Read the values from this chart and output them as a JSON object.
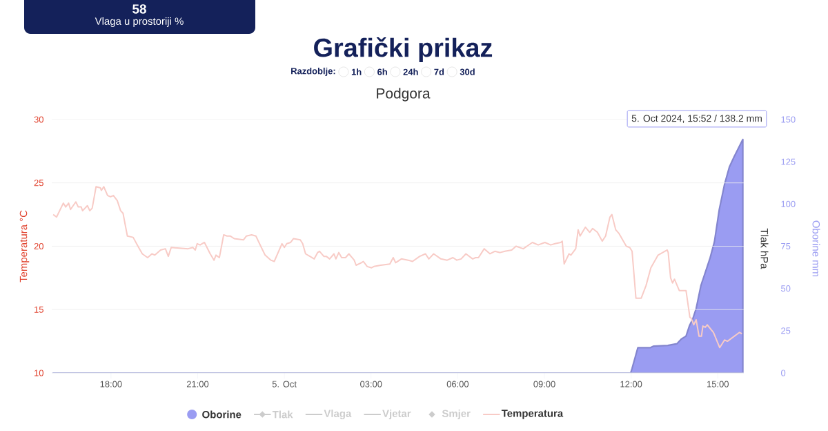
{
  "chart_data": {
    "type": "line",
    "title": "Grafički prikaz",
    "subtitle": "Podgora",
    "ylabel": "Temperatura °C",
    "y2label": "Oborine mm",
    "y3label": "Tlak hPa",
    "xlim": [
      "2024-10-04T15:57",
      "2024-10-05T15:54"
    ],
    "xticks": [
      {
        "value": "2024-10-04T18:00",
        "label": "18:00"
      },
      {
        "value": "2024-10-04T21:00",
        "label": "21:00"
      },
      {
        "value": "2024-10-05T00:00",
        "label": "5. Oct"
      },
      {
        "value": "2024-10-05T03:00",
        "label": "03:00"
      },
      {
        "value": "2024-10-05T06:00",
        "label": "06:00"
      },
      {
        "value": "2024-10-05T09:00",
        "label": "09:00"
      },
      {
        "value": "2024-10-05T12:00",
        "label": "12:00"
      },
      {
        "value": "2024-10-05T15:00",
        "label": "15:00"
      }
    ],
    "ylim": [
      10,
      30
    ],
    "yticks": [
      10,
      15,
      20,
      25,
      30
    ],
    "y2lim": [
      0,
      150
    ],
    "y2ticks": [
      0,
      25,
      50,
      75,
      100,
      125,
      150
    ],
    "grid": "y",
    "legend": "bottom",
    "annotations": [
      "5. Oct 2024, 15:52 / 138.2 mm",
      "58",
      "Vlaga u prostoriji %",
      "Razdoblje:",
      "1h",
      "6h",
      "24h",
      "7d",
      "30d"
    ],
    "series": [
      {
        "name": "Oborine",
        "type": "area",
        "axis": "y2",
        "color": "#9a9cf2",
        "x": [
          "2024-10-04T16:00",
          "2024-10-05T11:59",
          "2024-10-05T12:02",
          "2024-10-05T12:14",
          "2024-10-05T12:40",
          "2024-10-05T12:47",
          "2024-10-05T13:16",
          "2024-10-05T13:35",
          "2024-10-05T13:44",
          "2024-10-05T13:54",
          "2024-10-05T14:01",
          "2024-10-05T14:08",
          "2024-10-05T14:15",
          "2024-10-05T14:25",
          "2024-10-05T14:44",
          "2024-10-05T14:53",
          "2024-10-05T15:03",
          "2024-10-05T15:14",
          "2024-10-05T15:24",
          "2024-10-05T15:34",
          "2024-10-05T15:52"
        ],
        "values": [
          0,
          0,
          2.7,
          15.0,
          15.0,
          15.9,
          16.3,
          17.3,
          20.0,
          21.8,
          27.9,
          32.0,
          38.1,
          51.8,
          68.1,
          77.7,
          96.7,
          111.7,
          121.9,
          128.0,
          138.2
        ]
      },
      {
        "name": "Tlak",
        "type": "line",
        "marker": "diamond",
        "color": "#cccccc"
      },
      {
        "name": "Vlaga",
        "type": "line",
        "color": "#cccccc"
      },
      {
        "name": "Vjetar",
        "type": "line",
        "color": "#cccccc"
      },
      {
        "name": "Smjer",
        "type": "scatter",
        "marker": "diamond",
        "color": "#cccccc"
      },
      {
        "name": "Temperatura",
        "color": "#f8cbc6",
        "x": [
          "2024-10-04T16:00",
          "2024-10-04T16:07",
          "2024-10-04T16:21",
          "2024-10-04T16:26",
          "2024-10-04T16:32",
          "2024-10-04T16:36",
          "2024-10-04T16:47",
          "2024-10-04T16:52",
          "2024-10-04T16:58",
          "2024-10-04T17:01",
          "2024-10-04T17:11",
          "2024-10-04T17:16",
          "2024-10-04T17:21",
          "2024-10-04T17:29",
          "2024-10-04T17:38",
          "2024-10-04T17:40",
          "2024-10-04T17:45",
          "2024-10-04T17:53",
          "2024-10-04T17:59",
          "2024-10-04T18:05",
          "2024-10-04T18:13",
          "2024-10-04T18:20",
          "2024-10-04T18:25",
          "2024-10-04T18:34",
          "2024-10-04T18:46",
          "2024-10-04T18:56",
          "2024-10-04T19:05",
          "2024-10-04T19:16",
          "2024-10-04T19:25",
          "2024-10-04T19:31",
          "2024-10-04T19:43",
          "2024-10-04T19:53",
          "2024-10-04T19:59",
          "2024-10-04T20:05",
          "2024-10-04T20:40",
          "2024-10-04T20:50",
          "2024-10-04T20:55",
          "2024-10-04T20:59",
          "2024-10-04T21:05",
          "2024-10-04T21:14",
          "2024-10-04T21:26",
          "2024-10-04T21:34",
          "2024-10-04T21:38",
          "2024-10-04T21:45",
          "2024-10-04T21:54",
          "2024-10-04T22:01",
          "2024-10-04T22:08",
          "2024-10-04T22:16",
          "2024-10-04T22:35",
          "2024-10-04T22:41",
          "2024-10-04T22:52",
          "2024-10-04T23:01",
          "2024-10-04T23:11",
          "2024-10-04T23:20",
          "2024-10-04T23:32",
          "2024-10-04T23:39",
          "2024-10-04T23:55",
          "2024-10-05T00:00",
          "2024-10-05T00:05",
          "2024-10-05T00:13",
          "2024-10-05T00:19",
          "2024-10-05T00:33",
          "2024-10-05T00:38",
          "2024-10-05T00:44",
          "2024-10-05T00:53",
          "2024-10-05T01:02",
          "2024-10-05T01:09",
          "2024-10-05T01:13",
          "2024-10-05T01:22",
          "2024-10-05T01:27",
          "2024-10-05T01:34",
          "2024-10-05T01:43",
          "2024-10-05T01:47",
          "2024-10-05T01:53",
          "2024-10-05T01:59",
          "2024-10-05T02:07",
          "2024-10-05T02:14",
          "2024-10-05T02:25",
          "2024-10-05T02:29",
          "2024-10-05T02:40",
          "2024-10-05T02:44",
          "2024-10-05T02:52",
          "2024-10-05T03:01",
          "2024-10-05T03:06",
          "2024-10-05T03:20",
          "2024-10-05T03:39",
          "2024-10-05T03:46",
          "2024-10-05T03:51",
          "2024-10-05T04:03",
          "2024-10-05T04:17",
          "2024-10-05T04:26",
          "2024-10-05T04:41",
          "2024-10-05T04:53",
          "2024-10-05T05:00",
          "2024-10-05T05:10",
          "2024-10-05T05:25",
          "2024-10-05T05:38",
          "2024-10-05T05:50",
          "2024-10-05T05:58",
          "2024-10-05T06:07",
          "2024-10-05T06:17",
          "2024-10-05T06:31",
          "2024-10-05T06:37",
          "2024-10-05T06:43",
          "2024-10-05T06:55",
          "2024-10-05T07:07",
          "2024-10-05T07:17",
          "2024-10-05T07:28",
          "2024-10-05T07:38",
          "2024-10-05T07:52",
          "2024-10-05T08:01",
          "2024-10-05T08:16",
          "2024-10-05T08:35",
          "2024-10-05T08:47",
          "2024-10-05T09:01",
          "2024-10-05T09:13",
          "2024-10-05T09:22",
          "2024-10-05T09:34",
          "2024-10-05T09:37",
          "2024-10-05T09:41",
          "2024-10-05T09:51",
          "2024-10-05T09:55",
          "2024-10-05T10:05",
          "2024-10-05T10:10",
          "2024-10-05T10:14",
          "2024-10-05T10:25",
          "2024-10-05T10:34",
          "2024-10-05T10:40",
          "2024-10-05T10:50",
          "2024-10-05T11:00",
          "2024-10-05T11:07",
          "2024-10-05T11:16",
          "2024-10-05T11:20",
          "2024-10-05T11:28",
          "2024-10-05T11:35",
          "2024-10-05T11:50",
          "2024-10-05T11:57",
          "2024-10-05T12:02",
          "2024-10-05T12:10",
          "2024-10-05T12:21",
          "2024-10-05T12:31",
          "2024-10-05T12:41",
          "2024-10-05T12:56",
          "2024-10-05T13:15",
          "2024-10-05T13:17",
          "2024-10-05T13:22",
          "2024-10-05T13:26",
          "2024-10-05T13:30",
          "2024-10-05T13:40",
          "2024-10-05T13:44",
          "2024-10-05T13:54",
          "2024-10-05T14:02",
          "2024-10-05T14:05",
          "2024-10-05T14:10",
          "2024-10-05T14:15",
          "2024-10-05T14:21",
          "2024-10-05T14:26",
          "2024-10-05T14:29",
          "2024-10-05T14:34",
          "2024-10-05T14:38",
          "2024-10-05T14:51",
          "2024-10-05T15:04",
          "2024-10-05T15:14",
          "2024-10-05T15:20",
          "2024-10-05T15:45",
          "2024-10-05T15:50"
        ],
        "values": [
          22.5,
          22.3,
          23.4,
          23.1,
          23.4,
          22.9,
          23.5,
          23.1,
          23.1,
          22.8,
          23.2,
          22.8,
          23.0,
          24.7,
          24.6,
          24.4,
          24.7,
          24.0,
          23.9,
          24.0,
          23.6,
          22.8,
          22.6,
          20.8,
          20.7,
          20.0,
          19.4,
          19.1,
          19.4,
          19.3,
          19.7,
          19.8,
          19.2,
          19.9,
          19.8,
          19.9,
          19.7,
          20.2,
          20.1,
          20.3,
          19.4,
          18.9,
          19.3,
          19.1,
          20.9,
          20.8,
          20.8,
          20.6,
          20.5,
          20.8,
          20.9,
          20.8,
          20.0,
          19.3,
          18.9,
          18.8,
          20.2,
          19.9,
          20.2,
          20.3,
          20.6,
          20.5,
          20.2,
          19.4,
          19.2,
          19.0,
          19.5,
          19.6,
          19.2,
          19.2,
          19.0,
          19.4,
          19.0,
          19.5,
          19.1,
          19.1,
          19.4,
          18.9,
          18.5,
          18.7,
          18.8,
          18.4,
          18.3,
          18.4,
          18.5,
          18.6,
          19.1,
          18.7,
          19.0,
          18.9,
          18.8,
          19.2,
          19.4,
          19.0,
          19.4,
          19.0,
          18.9,
          19.1,
          18.9,
          19.0,
          19.4,
          19.0,
          19.1,
          19.1,
          19.8,
          19.4,
          19.6,
          19.5,
          19.6,
          19.7,
          20.0,
          19.8,
          20.3,
          20.1,
          20.3,
          20.1,
          20.2,
          20.3,
          20.4,
          18.6,
          19.4,
          19.3,
          19.8,
          21.3,
          20.8,
          21.5,
          21.1,
          21.4,
          21.1,
          20.4,
          20.8,
          22.3,
          22.5,
          21.3,
          21.0,
          20.0,
          19.9,
          19.6,
          15.9,
          15.9,
          16.9,
          18.3,
          19.3,
          19.7,
          19.5,
          17.5,
          17.1,
          17.4,
          16.5,
          16.5,
          16.5,
          14.4,
          14.3,
          13.8,
          14.2,
          12.9,
          12.9,
          13.7,
          13.6,
          13.8,
          13.2,
          12.0,
          12.6,
          12.5,
          13.2,
          13.1
        ]
      }
    ]
  }
}
